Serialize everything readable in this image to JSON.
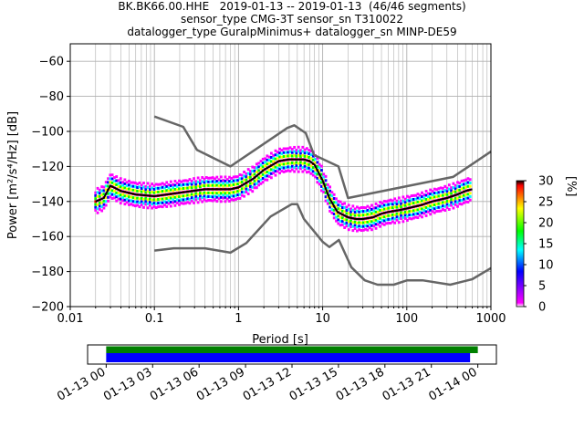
{
  "header": {
    "line1": "BK.BK66.00.HHE   2019-01-13 -- 2019-01-13  (46/46 segments)",
    "line2": "sensor_type CMG-3T sensor_sn T310022",
    "line3": "datalogger_type GuralpMinimus+ datalogger_sn MINP-DE59"
  },
  "chart_data": [
    {
      "type": "heatmap",
      "xlabel": "Period [s]",
      "ylabel": "Power [m²/s⁴/Hz] [dB]",
      "xscale": "log",
      "xlim": [
        0.01,
        1000
      ],
      "ylim": [
        -200,
        -50
      ],
      "grid": true,
      "x_ticks": [
        "0.01",
        "0.1",
        "1",
        "10",
        "100",
        "1000"
      ],
      "y_ticks": [
        "-60",
        "-80",
        "-100",
        "-120",
        "-140",
        "-160",
        "-180",
        "-200"
      ],
      "colorbar": {
        "label": "[%]",
        "range": [
          0,
          30
        ],
        "ticks": [
          "0",
          "5",
          "10",
          "15",
          "20",
          "25",
          "30"
        ],
        "colors": [
          "#ffffff",
          "#ff00ff",
          "#0000ff",
          "#00ffff",
          "#00ff00",
          "#ffff00",
          "#ff0000",
          "#000000"
        ]
      },
      "series": [
        {
          "role": "mode",
          "color": "#000000",
          "x": [
            0.02,
            0.025,
            0.03,
            0.04,
            0.06,
            0.1,
            0.2,
            0.4,
            0.8,
            1.0,
            1.5,
            2.0,
            3.0,
            4.0,
            5.0,
            6.0,
            7.0,
            8.0,
            10.0,
            12.0,
            15.0,
            20.0,
            25.0,
            30.0,
            40.0,
            50.0,
            60.0,
            80.0,
            100.0,
            150.0,
            200.0,
            300.0,
            400.0,
            500.0,
            600.0
          ],
          "y": [
            -140,
            -138,
            -131,
            -134,
            -136,
            -137,
            -135,
            -133,
            -133,
            -132,
            -127,
            -122,
            -117,
            -116,
            -116,
            -116,
            -117,
            -119,
            -128,
            -138,
            -146,
            -149,
            -150,
            -150,
            -149,
            -147,
            -146,
            -145,
            -144,
            -142,
            -140,
            -138,
            -136,
            -134,
            -133
          ]
        },
        {
          "role": "noise-model-upper",
          "color": "#666666",
          "x": [
            0.1,
            0.22,
            0.32,
            0.8,
            3.8,
            4.6,
            6.3,
            7.9,
            15.4,
            20.0,
            354.8,
            1000.0
          ],
          "y": [
            -91.5,
            -97.4,
            -110.5,
            -120.0,
            -98.0,
            -96.5,
            -101.0,
            -113.5,
            -120.0,
            -138.0,
            -126.0,
            -111.5
          ]
        },
        {
          "role": "noise-model-lower",
          "color": "#666666",
          "x": [
            0.1,
            0.17,
            0.4,
            0.8,
            1.24,
            2.4,
            4.3,
            5.0,
            6.0,
            10.0,
            12.0,
            15.6,
            21.9,
            31.6,
            45.0,
            70.0,
            101.0,
            154.0,
            328.0,
            600.0,
            1000.0
          ],
          "y": [
            -168.0,
            -166.7,
            -166.7,
            -169.2,
            -163.7,
            -148.6,
            -141.5,
            -141.5,
            -150.0,
            -163.0,
            -166.0,
            -162.0,
            -177.5,
            -185.0,
            -187.5,
            -187.5,
            -185.0,
            -185.0,
            -187.5,
            -184.4,
            -178.0
          ]
        }
      ]
    },
    {
      "type": "bar",
      "orientation": "horizontal",
      "x_tick_labels": [
        "01-13 00",
        "01-13 03",
        "01-13 06",
        "01-13 09",
        "01-13 12",
        "01-13 15",
        "01-13 18",
        "01-13 21",
        "01-14 00"
      ],
      "xlim_hours": [
        -1.2,
        25.2
      ],
      "series": [
        {
          "name": "",
          "color": "#008000",
          "start_hour": 0.0,
          "end_hour": 24.0
        },
        {
          "name": "",
          "color": "#0000ff",
          "start_hour": 0.0,
          "end_hour": 23.5
        }
      ]
    }
  ]
}
